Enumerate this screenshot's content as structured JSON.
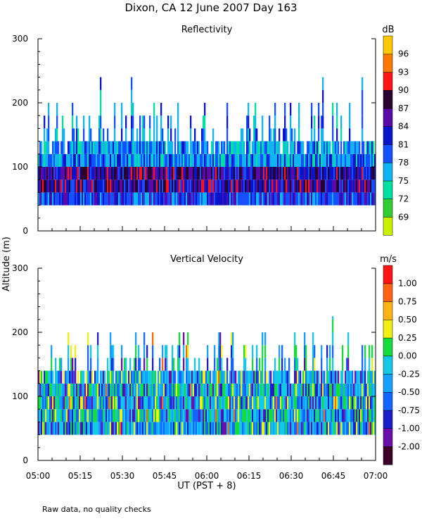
{
  "figure": {
    "title": "Dixon, CA 12 June 2007  Day 163",
    "ylabel": "Altitude (m)",
    "xlabel": "UT  (PST + 8)",
    "x_tick_labels": [
      "05:00",
      "05:15",
      "05:30",
      "05:45",
      "06:00",
      "06:15",
      "06:30",
      "06:45",
      "07:00"
    ],
    "footnote": "Raw data, no quality checks"
  },
  "chart_data": [
    {
      "type": "heatmap",
      "title": "Reflectivity",
      "xlabel": "UT  (PST + 8)",
      "ylabel": "Altitude (m)",
      "x_range": [
        "05:00",
        "07:00"
      ],
      "ylim": [
        0,
        300
      ],
      "y_ticks": [
        0,
        100,
        200,
        300
      ],
      "colorbar": {
        "unit": "dB",
        "levels": [
          69,
          72,
          75,
          78,
          81,
          84,
          87,
          90,
          93,
          96
        ],
        "colors": [
          "#c8f000",
          "#32cd32",
          "#00e0a0",
          "#10b4f0",
          "#1450ff",
          "#0a14c8",
          "#5a0aa8",
          "#2a0032",
          "#ff1414",
          "#ff7800",
          "#ffc800"
        ]
      },
      "echo_base_m": 40,
      "typical_top_m": 140,
      "max_top_m": 240,
      "core_altitude_m": [
        50,
        90
      ]
    },
    {
      "type": "heatmap",
      "title": "Vertical Velocity",
      "xlabel": "UT  (PST + 8)",
      "ylabel": "Altitude (m)",
      "x_range": [
        "05:00",
        "07:00"
      ],
      "ylim": [
        0,
        300
      ],
      "y_ticks": [
        0,
        100,
        200,
        300
      ],
      "colorbar": {
        "unit": "m/s",
        "levels": [
          -2.0,
          -1.0,
          -0.75,
          -0.5,
          -0.25,
          0.0,
          0.25,
          0.5,
          0.75,
          1.0
        ],
        "labels": [
          "-2.00",
          "-1.00",
          "-0.75",
          "-0.50",
          "-0.25",
          "0.00",
          "0.25",
          "0.50",
          "0.75",
          "1.00"
        ],
        "colors": [
          "#3c0028",
          "#6a10a8",
          "#1e1ec8",
          "#1464ff",
          "#14a0ff",
          "#14c8e6",
          "#14dc3c",
          "#f0f014",
          "#ffb414",
          "#ff6414",
          "#ff1414"
        ]
      },
      "echo_base_m": 40,
      "typical_top_m": 140,
      "max_top_m": 225
    }
  ],
  "colors": {
    "background": "#ffffff",
    "axes": "#000000"
  }
}
